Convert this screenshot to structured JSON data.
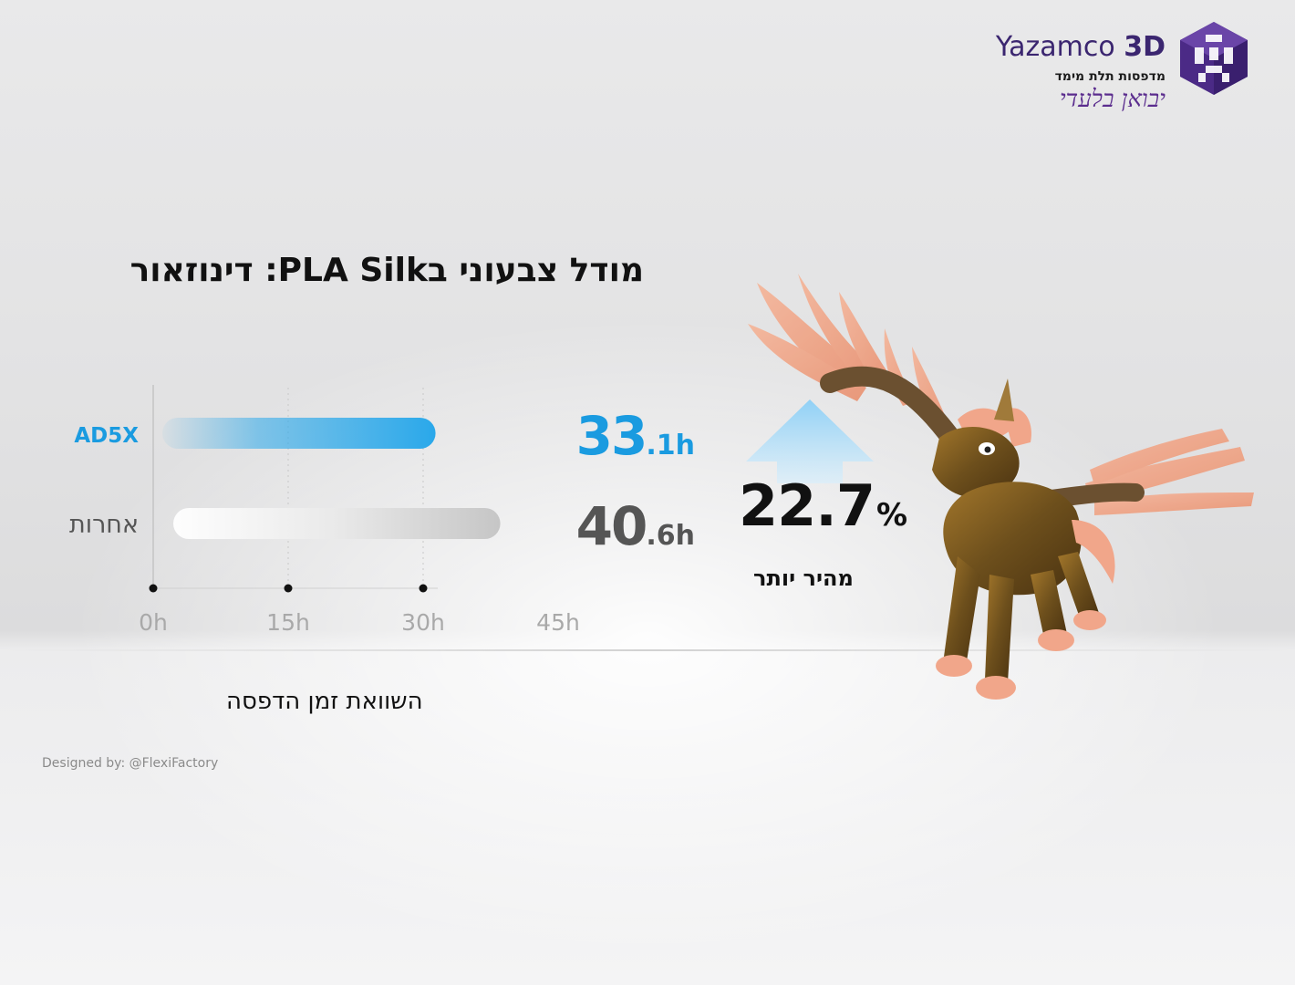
{
  "logo": {
    "brand_light": "Yazamco",
    "brand_bold": "3D",
    "tagline": "מדפסות תלת מימד",
    "script": "יבואן בלעדי",
    "colors": {
      "purple": "#4b2a86",
      "purple_light": "#7b57b8"
    }
  },
  "title": "מודל צבעוני בPLA Silk: דינוזאור",
  "subtitle": "השוואת זמן הדפסה",
  "credit": "Designed by: @FlexiFactory",
  "highlight": {
    "percent_value": "22.7",
    "percent_sign": "%",
    "label": "מהיר יותר",
    "arrow_icon": "up-arrow-icon"
  },
  "chart_data": {
    "type": "bar",
    "orientation": "horizontal",
    "title": "",
    "xlabel": "",
    "ylabel": "",
    "xlim": [
      0,
      45
    ],
    "x_ticks": [
      "0h",
      "15h",
      "30h",
      "45h"
    ],
    "x_tick_values": [
      0,
      15,
      30,
      45
    ],
    "grid": true,
    "categories": [
      "AD5X",
      "אחרות"
    ],
    "values": [
      33.1,
      40.6
    ],
    "value_labels": [
      {
        "main": "33",
        "decimal": ".1h"
      },
      {
        "main": "40",
        "decimal": ".6h"
      }
    ],
    "colors": [
      "#2aa8ea",
      "#c9c9c9"
    ],
    "label_colors": [
      "#1a9be0",
      "#555555"
    ]
  },
  "illustration": {
    "icon": "winged-unicorn-figure-icon"
  }
}
